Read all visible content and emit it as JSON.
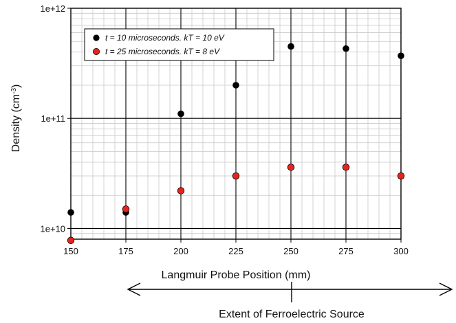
{
  "chart_data": {
    "type": "scatter",
    "xlabel": "Langmuir Probe Position (mm)",
    "ylabel": "Density (cm",
    "ylabel_sup": "-3",
    "ylabel_close": ")",
    "xlim": [
      150,
      300
    ],
    "ylim": [
      8000000000.0,
      1000000000000.0
    ],
    "y_scale": "log",
    "grid": true,
    "legend_position": "top-left",
    "x_ticks": [
      150,
      175,
      200,
      225,
      250,
      275,
      300
    ],
    "x_tick_labels": [
      "150",
      "175",
      "200",
      "225",
      "250",
      "275",
      "300"
    ],
    "y_ticks": [
      10000000000.0,
      100000000000.0,
      1000000000000.0
    ],
    "y_tick_labels": [
      "1e+10",
      "1e+11",
      "1e+12"
    ],
    "series": [
      {
        "name": "t = 10 microseconds. kT = 10 eV",
        "color": "#000000",
        "x": [
          150,
          175,
          200,
          225,
          250,
          275,
          300
        ],
        "y": [
          14000000000.0,
          14000000000.0,
          110000000000.0,
          200000000000.0,
          450000000000.0,
          430000000000.0,
          370000000000.0
        ]
      },
      {
        "name": "t = 25 microseconds. kT = 8 eV",
        "color": "#e8231c",
        "x": [
          150,
          175,
          200,
          225,
          250,
          275,
          300
        ],
        "y": [
          7800000000.0,
          15000000000.0,
          22000000000.0,
          30000000000.0,
          36000000000.0,
          36000000000.0,
          30000000000.0
        ]
      }
    ]
  },
  "annotation": {
    "label": "Extent of Ferroelectric Source"
  }
}
